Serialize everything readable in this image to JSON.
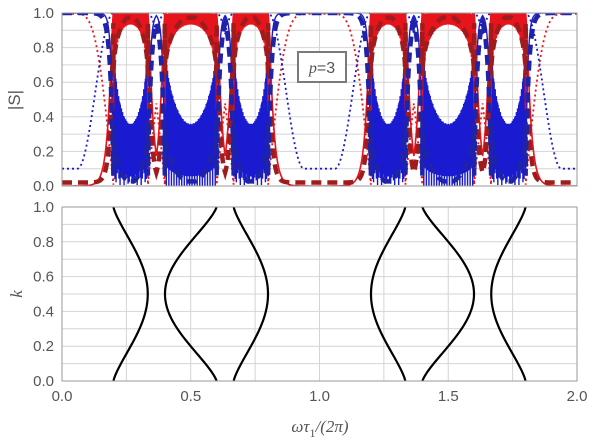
{
  "chart_data": [
    {
      "type": "line",
      "ylabel": "|S|",
      "annotation": "p=3",
      "xlim": [
        0,
        2
      ],
      "ylim": [
        0,
        1
      ],
      "x_ticks": [
        "0.0",
        "0.5",
        "1.0",
        "1.5",
        "2.0"
      ],
      "y_ticks": [
        "0.0",
        "0.2",
        "0.4",
        "0.6",
        "0.8",
        "1.0"
      ],
      "grid": true,
      "bands": [
        [
          0.2,
          0.333
        ],
        [
          0.4,
          0.6
        ],
        [
          0.667,
          0.8
        ],
        [
          1.2,
          1.333
        ],
        [
          1.4,
          1.6
        ],
        [
          1.667,
          1.8
        ]
      ],
      "series": [
        {
          "style": "red-solid-oscillating",
          "color": "#e8141c"
        },
        {
          "style": "blue-solid-oscillating",
          "color": "#1a1ad0"
        },
        {
          "style": "darkred-thick-dashed",
          "color": "#a01c1c"
        },
        {
          "style": "blue-thick-dashed",
          "color": "#1e23a8"
        },
        {
          "style": "red-dotted",
          "color": "#e8141c"
        },
        {
          "style": "blue-dotted",
          "color": "#1a1ad0"
        }
      ]
    },
    {
      "type": "line",
      "xlabel": "ωτ1/(2π)",
      "ylabel": "k",
      "xlim": [
        0,
        2
      ],
      "ylim": [
        0,
        1
      ],
      "x_ticks": [
        "0.0",
        "0.5",
        "1.0",
        "1.5",
        "2.0"
      ],
      "y_ticks": [
        "0.0",
        "0.2",
        "0.4",
        "0.6",
        "0.8",
        "1.0"
      ],
      "grid": true,
      "color": "#000000",
      "band_curves": [
        {
          "edge_x": 0.2,
          "extreme_x": 0.333
        },
        {
          "edge_x": 0.6,
          "extreme_x": 0.4
        },
        {
          "edge_x": 0.667,
          "extreme_x": 0.8
        },
        {
          "edge_x": 1.333,
          "extreme_x": 1.2
        },
        {
          "edge_x": 1.4,
          "extreme_x": 1.6
        },
        {
          "edge_x": 1.8,
          "extreme_x": 1.667
        }
      ]
    }
  ]
}
